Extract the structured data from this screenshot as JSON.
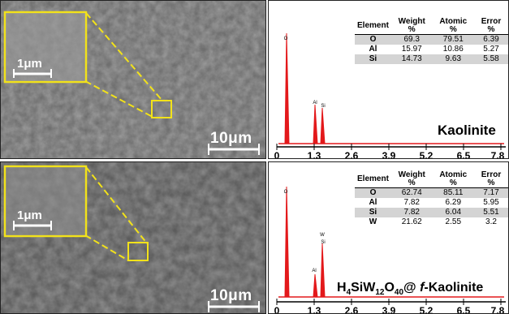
{
  "panels": [
    {
      "sample_label": "Kaolinite",
      "main_scale": "10μm",
      "inset_scale": "1μm",
      "table": {
        "headers": [
          "Element",
          "Weight %",
          "Atomic %",
          "Error %"
        ],
        "rows": [
          [
            "O",
            "69.3",
            "79.51",
            "6.39"
          ],
          [
            "Al",
            "15.97",
            "10.86",
            "5.27"
          ],
          [
            "Si",
            "14.73",
            "9.63",
            "5.58"
          ]
        ]
      },
      "peak_labels": [
        "O",
        "Al",
        "Si"
      ],
      "x_ticks": [
        "0",
        "1.3",
        "2.6",
        "3.9",
        "5.2",
        "6.5",
        "7.8"
      ]
    },
    {
      "sample_label_parts": [
        "H",
        "4",
        "SiW",
        "12",
        "O",
        "40",
        "@ ",
        "f",
        "-Kaolinite"
      ],
      "main_scale": "10μm",
      "inset_scale": "1μm",
      "table": {
        "headers": [
          "Element",
          "Weight %",
          "Atomic %",
          "Error %"
        ],
        "rows": [
          [
            "O",
            "62.74",
            "85.11",
            "7.17"
          ],
          [
            "Al",
            "7.82",
            "6.29",
            "5.95"
          ],
          [
            "Si",
            "7.82",
            "6.04",
            "5.51"
          ],
          [
            "W",
            "21.62",
            "2.55",
            "3.2"
          ]
        ]
      },
      "peak_labels": [
        "O",
        "Al",
        "W",
        "Si"
      ],
      "x_ticks": [
        "0",
        "1.3",
        "2.6",
        "3.9",
        "5.2",
        "6.5",
        "7.8"
      ]
    }
  ],
  "colors": {
    "highlight": "#f2e21a",
    "peak": "#e3191b",
    "axis": "#000000"
  }
}
